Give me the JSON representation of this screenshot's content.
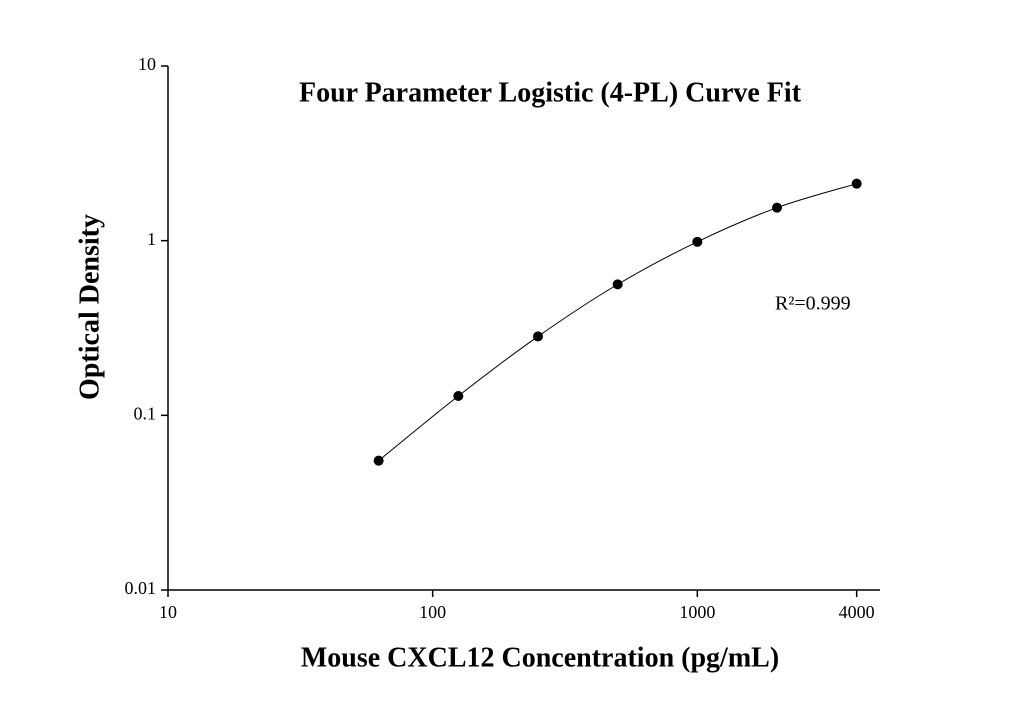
{
  "chart_data": {
    "type": "scatter",
    "title": "Four Parameter Logistic (4-PL) Curve Fit",
    "x_label": "Mouse CXCL12 Concentration (pg/mL)",
    "y_label": "Optical Density",
    "annotation": "R²=0.999",
    "x_scale": "log",
    "y_scale": "log",
    "xlim": [
      10,
      4900
    ],
    "ylim": [
      0.01,
      10
    ],
    "xticks": [
      10,
      100,
      1000,
      4000
    ],
    "yticks": [
      0.01,
      0.1,
      1,
      10
    ],
    "series": [
      {
        "color": "#000000",
        "x": [
          62.5,
          125,
          250,
          500,
          1000,
          2000,
          4000
        ],
        "values": [
          0.055,
          0.129,
          0.283,
          0.562,
          0.985,
          1.545,
          2.12
        ]
      }
    ]
  }
}
